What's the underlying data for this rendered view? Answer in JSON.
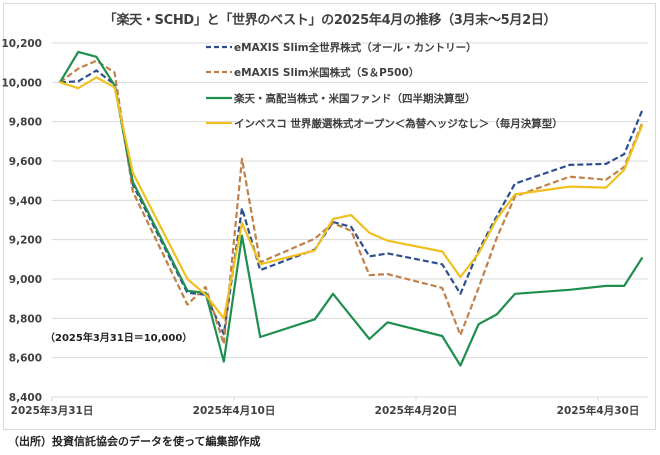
{
  "chart_data": {
    "type": "line",
    "title": "「楽天・SCHD」と「世界のベスト」の2025年4月の推移（3月末～5月2日）",
    "xlabel": "",
    "ylabel": "",
    "ylim": [
      8400,
      10200
    ],
    "yticks": [
      10200,
      10000,
      9800,
      9600,
      9400,
      9200,
      9000,
      8800,
      8600,
      8400
    ],
    "ytick_labels": [
      "10,200",
      "10,000",
      "9,800",
      "9,600",
      "9,400",
      "9,200",
      "9,000",
      "8,800",
      "8,600",
      "8,400"
    ],
    "grid": true,
    "legend_position": "top-right",
    "xtick_labels": [
      {
        "day": 0,
        "label": "2025年3月31日"
      },
      {
        "day": 10,
        "label": "2025年4月10日"
      },
      {
        "day": 20,
        "label": "2025年4月20日"
      },
      {
        "day": 30,
        "label": "2025年4月30日"
      }
    ],
    "x_days": [
      0,
      1,
      2,
      3,
      4,
      7,
      8,
      9,
      10,
      11,
      14,
      15,
      16,
      17,
      18,
      21,
      22,
      23,
      24,
      25,
      28,
      30,
      31,
      32
    ],
    "x_dates": [
      "3/31",
      "4/1",
      "4/2",
      "4/3",
      "4/4",
      "4/7",
      "4/8",
      "4/9",
      "4/10",
      "4/11",
      "4/14",
      "4/15",
      "4/16",
      "4/17",
      "4/18",
      "4/21",
      "4/22",
      "4/23",
      "4/24",
      "4/25",
      "4/28",
      "4/30",
      "5/1",
      "5/2"
    ],
    "series": [
      {
        "name": "eMAXIS Slim全世界株式（オール・カントリー）",
        "color": "#2e4f8f",
        "style": "dashed",
        "values": [
          10000,
          10005,
          10060,
          9990,
          9480,
          8930,
          8920,
          8720,
          9360,
          9045,
          9150,
          9290,
          9265,
          9115,
          9130,
          9075,
          8925,
          9145,
          9320,
          9485,
          9580,
          9585,
          9635,
          9860
        ]
      },
      {
        "name": "eMAXIS Slim米国株式（S＆P500）",
        "color": "#c0804a",
        "style": "dashed",
        "values": [
          10000,
          10070,
          10110,
          10050,
          9445,
          8870,
          8960,
          8670,
          9610,
          9085,
          9205,
          9285,
          9245,
          9020,
          9025,
          8955,
          8715,
          8955,
          9210,
          9420,
          9520,
          9505,
          9570,
          9795
        ]
      },
      {
        "name": "楽天・高配当株式・米国ファンド（四半期決算型）",
        "color": "#1f8f4e",
        "style": "solid",
        "values": [
          10000,
          10155,
          10130,
          9985,
          9495,
          8940,
          8930,
          8580,
          9220,
          8705,
          8795,
          8925,
          8810,
          8695,
          8780,
          8710,
          8560,
          8770,
          8820,
          8925,
          8945,
          8965,
          8965,
          9110
        ]
      },
      {
        "name": "インベスコ 世界厳選株式オープン＜為替ヘッジなし＞（毎月決算型）",
        "color": "#f0c020",
        "style": "solid",
        "values": [
          10000,
          9970,
          10025,
          9975,
          9540,
          9000,
          8920,
          8800,
          9285,
          9075,
          9145,
          9305,
          9325,
          9235,
          9195,
          9140,
          9010,
          9130,
          9305,
          9430,
          9470,
          9465,
          9555,
          9785
        ]
      }
    ],
    "annotation": "（2025年3月31日＝10,000）"
  },
  "source_note": "（出所）投資信託協会のデータを使って編集部作成"
}
